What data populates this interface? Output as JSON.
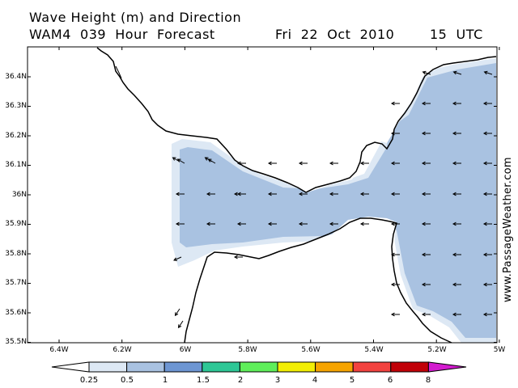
{
  "header": {
    "line1": "Wave Height (m) and Direction",
    "line2": "WAM4  039  Hour  Forecast",
    "date": "Fri  22  Oct  2010",
    "time": "15  UTC"
  },
  "axes": {
    "lat_labels": [
      "36.4N",
      "36.3N",
      "36.2N",
      "36.1N",
      "36N",
      "35.9N",
      "35.8N",
      "35.7N",
      "35.6N",
      "35.5N"
    ],
    "lon_labels": [
      "6.4W",
      "6.2W",
      "6W",
      "5.8W",
      "5.6W",
      "5.4W",
      "5.2W",
      "5W"
    ]
  },
  "legend": {
    "labels": [
      "0.25",
      "0.5",
      "1",
      "1.5",
      "2",
      "3",
      "4",
      "5",
      "6",
      "8"
    ],
    "colors": [
      "#ffffff",
      "#dde8f4",
      "#a9c2e1",
      "#6d96d3",
      "#2ec796",
      "#5fef5a",
      "#f2ee05",
      "#f6a400",
      "#f2423f",
      "#c10008",
      "#d31bcf"
    ],
    "unit": "m"
  },
  "map": {
    "region": "Strait of Gibraltar",
    "water_color": "#ffffff",
    "wave_colors": {
      "light": "#dde8f4",
      "medium": "#a9c2e1"
    },
    "wave_direction": "westward"
  },
  "credit": "www.PassageWeather.com"
}
